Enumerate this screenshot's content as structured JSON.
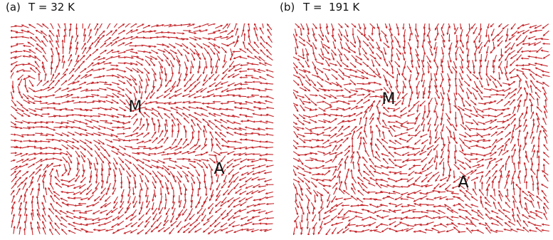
{
  "panels": [
    {
      "label": "(a)",
      "title": "T = 32 K",
      "markers": [
        "M",
        "A"
      ]
    },
    {
      "label": "(b)",
      "title": "T =  191 K",
      "markers": [
        "M",
        "A"
      ]
    }
  ]
}
